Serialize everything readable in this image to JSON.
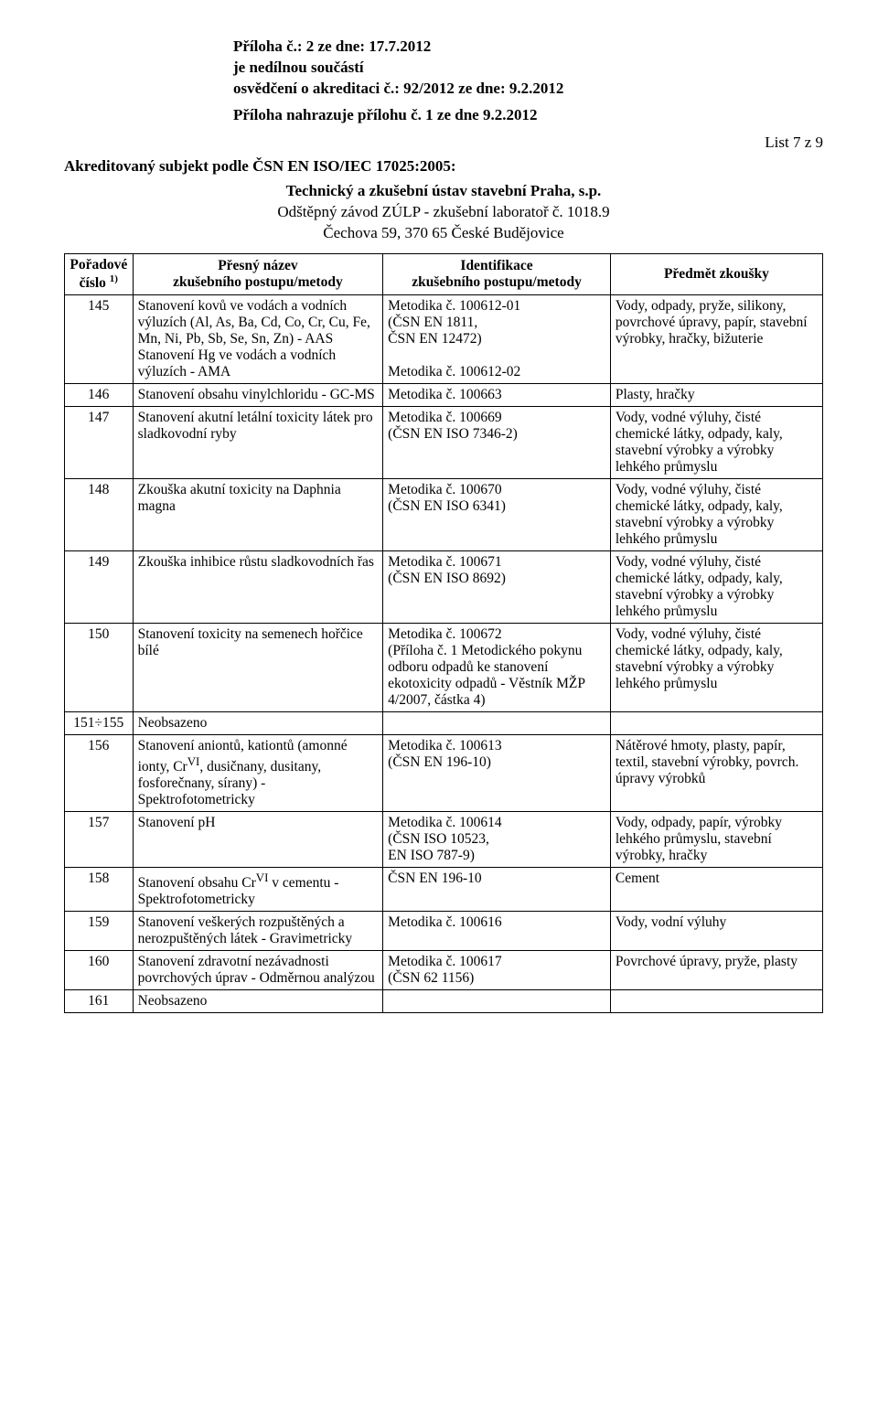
{
  "header": {
    "line1": "Příloha č.: 2 ze dne: 17.7.2012",
    "line2": "je nedílnou součástí",
    "line3": "osvědčení o akreditaci č.: 92/2012  ze dne: 9.2.2012",
    "line4": "Příloha nahrazuje přílohu č. 1 ze dne 9.2.2012",
    "list": "List 7 z 9",
    "akred": "Akreditovaný subjekt podle ČSN EN ISO/IEC 17025:2005:",
    "center1": "Technický a zkušební ústav stavební Praha, s.p.",
    "center2": "Odštěpný závod ZÚLP - zkušební laboratoř č. 1018.9",
    "center3": "Čechova 59, 370 65  České Budějovice"
  },
  "columns": {
    "c1a": "Pořadové",
    "c1b": "číslo",
    "c1sup": "1)",
    "c2a": "Přesný název",
    "c2b": "zkušebního postupu/metody",
    "c3a": "Identifikace",
    "c3b": "zkušebního postupu/metody",
    "c4": "Předmět zkoušky"
  },
  "rows": [
    {
      "n": "145",
      "a": "Stanovení kovů ve vodách a vodních výluzích (Al, As, Ba, Cd, Co, Cr, Cu, Fe, Mn, Ni, Pb, Sb, Se, Sn, Zn) - AAS\nStanovení Hg ve vodách a vodních výluzích - AMA",
      "b": "Metodika č. 100612-01\n(ČSN EN 1811,\nČSN EN 12472)\n\nMetodika č. 100612-02",
      "c": "Vody, odpady, pryže, silikony, povrchové úpravy, papír, stavební výrobky, hračky, bižuterie"
    },
    {
      "n": "146",
      "a": "Stanovení obsahu vinylchloridu - GC-MS",
      "b": "Metodika č. 100663",
      "c": "Plasty, hračky"
    },
    {
      "n": "147",
      "a": "Stanovení akutní letální toxicity látek pro sladkovodní ryby",
      "b": "Metodika č. 100669\n(ČSN EN ISO 7346-2)",
      "c": "Vody, vodné výluhy, čisté chemické látky, odpady, kaly, stavební výrobky a výrobky lehkého průmyslu"
    },
    {
      "n": "148",
      "a": "Zkouška akutní toxicity na Daphnia magna",
      "b": "Metodika č. 100670\n(ČSN EN ISO 6341)",
      "c": "Vody, vodné výluhy, čisté chemické látky, odpady, kaly, stavební výrobky a výrobky lehkého průmyslu"
    },
    {
      "n": "149",
      "a": "Zkouška inhibice růstu sladkovodních řas",
      "b": "Metodika č. 100671\n(ČSN EN ISO 8692)",
      "c": "Vody, vodné výluhy, čisté chemické látky, odpady, kaly, stavební výrobky a výrobky lehkého průmyslu"
    },
    {
      "n": "150",
      "a": "Stanovení toxicity na semenech hořčice bílé",
      "b": "Metodika č. 100672\n(Příloha č. 1 Metodického pokynu odboru odpadů ke stanovení ekotoxicity odpadů - Věstník MŽP 4/2007, částka 4)",
      "c": "Vody, vodné výluhy, čisté chemické látky, odpady, kaly, stavební výrobky a výrobky lehkého průmyslu"
    },
    {
      "n": "151÷155",
      "a": "Neobsazeno",
      "b": "",
      "c": ""
    },
    {
      "n": "156",
      "a": "Stanovení aniontů, kationtů (amonné ionty, Cr<sup>VI</sup>, dusičnany, dusitany, fosforečnany, sírany) - Spektrofotometricky",
      "b": "Metodika č. 100613\n(ČSN EN 196-10)",
      "c": "Nátěrové hmoty, plasty, papír, textil, stavební výrobky, povrch. úpravy výrobků"
    },
    {
      "n": "157",
      "a": "Stanovení pH",
      "b": "Metodika č. 100614\n(ČSN ISO 10523,\nEN ISO 787-9)",
      "c": "Vody, odpady, papír, výrobky lehkého průmyslu, stavební výrobky, hračky"
    },
    {
      "n": "158",
      "a": "Stanovení obsahu Cr<sup>VI</sup> v cementu - Spektrofotometricky",
      "b": "ČSN EN 196-10",
      "c": "Cement"
    },
    {
      "n": "159",
      "a": "Stanovení veškerých rozpuštěných a nerozpuštěných látek - Gravimetricky",
      "b": "Metodika č. 100616",
      "c": "Vody, vodní výluhy"
    },
    {
      "n": "160",
      "a": "Stanovení zdravotní nezávadnosti povrchových úprav - Odměrnou analýzou",
      "b": "Metodika č. 100617\n(ČSN 62 1156)",
      "c": "Povrchové úpravy, pryže, plasty"
    },
    {
      "n": "161",
      "a": "Neobsazeno",
      "b": "",
      "c": ""
    }
  ]
}
